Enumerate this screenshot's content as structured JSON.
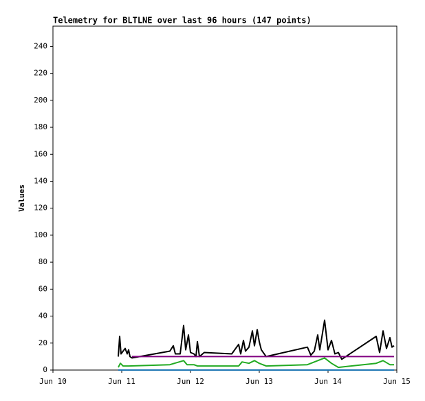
{
  "chart_data": {
    "type": "line",
    "title": "Telemetry for BLTLNE over last 96 hours (147 points)",
    "ylabel": "Values",
    "xlim": [
      10,
      15
    ],
    "xticks": [
      {
        "value": 10,
        "label": "Jun 10"
      },
      {
        "value": 11,
        "label": "Jun 11"
      },
      {
        "value": 12,
        "label": "Jun 12"
      },
      {
        "value": 13,
        "label": "Jun 13"
      },
      {
        "value": 14,
        "label": "Jun 14"
      },
      {
        "value": 15,
        "label": "Jun 15"
      }
    ],
    "ylim": [
      0,
      255
    ],
    "yticks": [
      0,
      20,
      40,
      60,
      80,
      100,
      120,
      140,
      160,
      180,
      200,
      220,
      240
    ],
    "grid": false,
    "series": [
      {
        "color": "#000000",
        "x": [
          10.95,
          10.97,
          10.99,
          11.02,
          11.05,
          11.08,
          11.1,
          11.12,
          11.15,
          11.7,
          11.75,
          11.78,
          11.85,
          11.9,
          11.93,
          11.97,
          12.0,
          12.05,
          12.08,
          12.1,
          12.13,
          12.2,
          12.6,
          12.7,
          12.73,
          12.77,
          12.8,
          12.85,
          12.9,
          12.93,
          12.97,
          13.0,
          13.03,
          13.1,
          13.7,
          13.75,
          13.8,
          13.85,
          13.88,
          13.95,
          14.0,
          14.05,
          14.1,
          14.15,
          14.2,
          14.7,
          14.75,
          14.8,
          14.85,
          14.9,
          14.93,
          14.96
        ],
        "values": [
          10,
          25,
          12,
          14,
          16,
          12,
          15,
          10,
          9,
          14,
          18,
          12,
          12,
          33,
          15,
          26,
          13,
          12,
          10,
          21,
          10,
          13,
          12,
          19,
          12,
          22,
          14,
          17,
          29,
          18,
          30,
          21,
          15,
          10,
          17,
          11,
          14,
          26,
          15,
          37,
          15,
          22,
          12,
          13,
          8,
          25,
          13,
          29,
          16,
          24,
          17,
          18
        ]
      },
      {
        "color": "#800080",
        "x": [
          11.15,
          14.96
        ],
        "values": [
          10,
          10
        ]
      },
      {
        "color": "#22aa22",
        "x": [
          10.95,
          10.98,
          11.02,
          11.1,
          11.7,
          11.9,
          11.95,
          12.05,
          12.1,
          12.7,
          12.75,
          12.85,
          12.93,
          13.0,
          13.1,
          13.7,
          13.85,
          13.95,
          14.05,
          14.15,
          14.7,
          14.8,
          14.9,
          14.96
        ],
        "values": [
          2,
          5,
          3,
          3,
          4,
          7,
          4,
          4,
          3,
          3,
          6,
          5,
          7,
          5,
          3,
          4,
          7,
          9,
          5,
          2,
          5,
          7,
          4,
          4
        ]
      },
      {
        "color": "#1f77b4",
        "x": [
          10.95,
          14.96
        ],
        "values": [
          0,
          0
        ]
      }
    ]
  }
}
